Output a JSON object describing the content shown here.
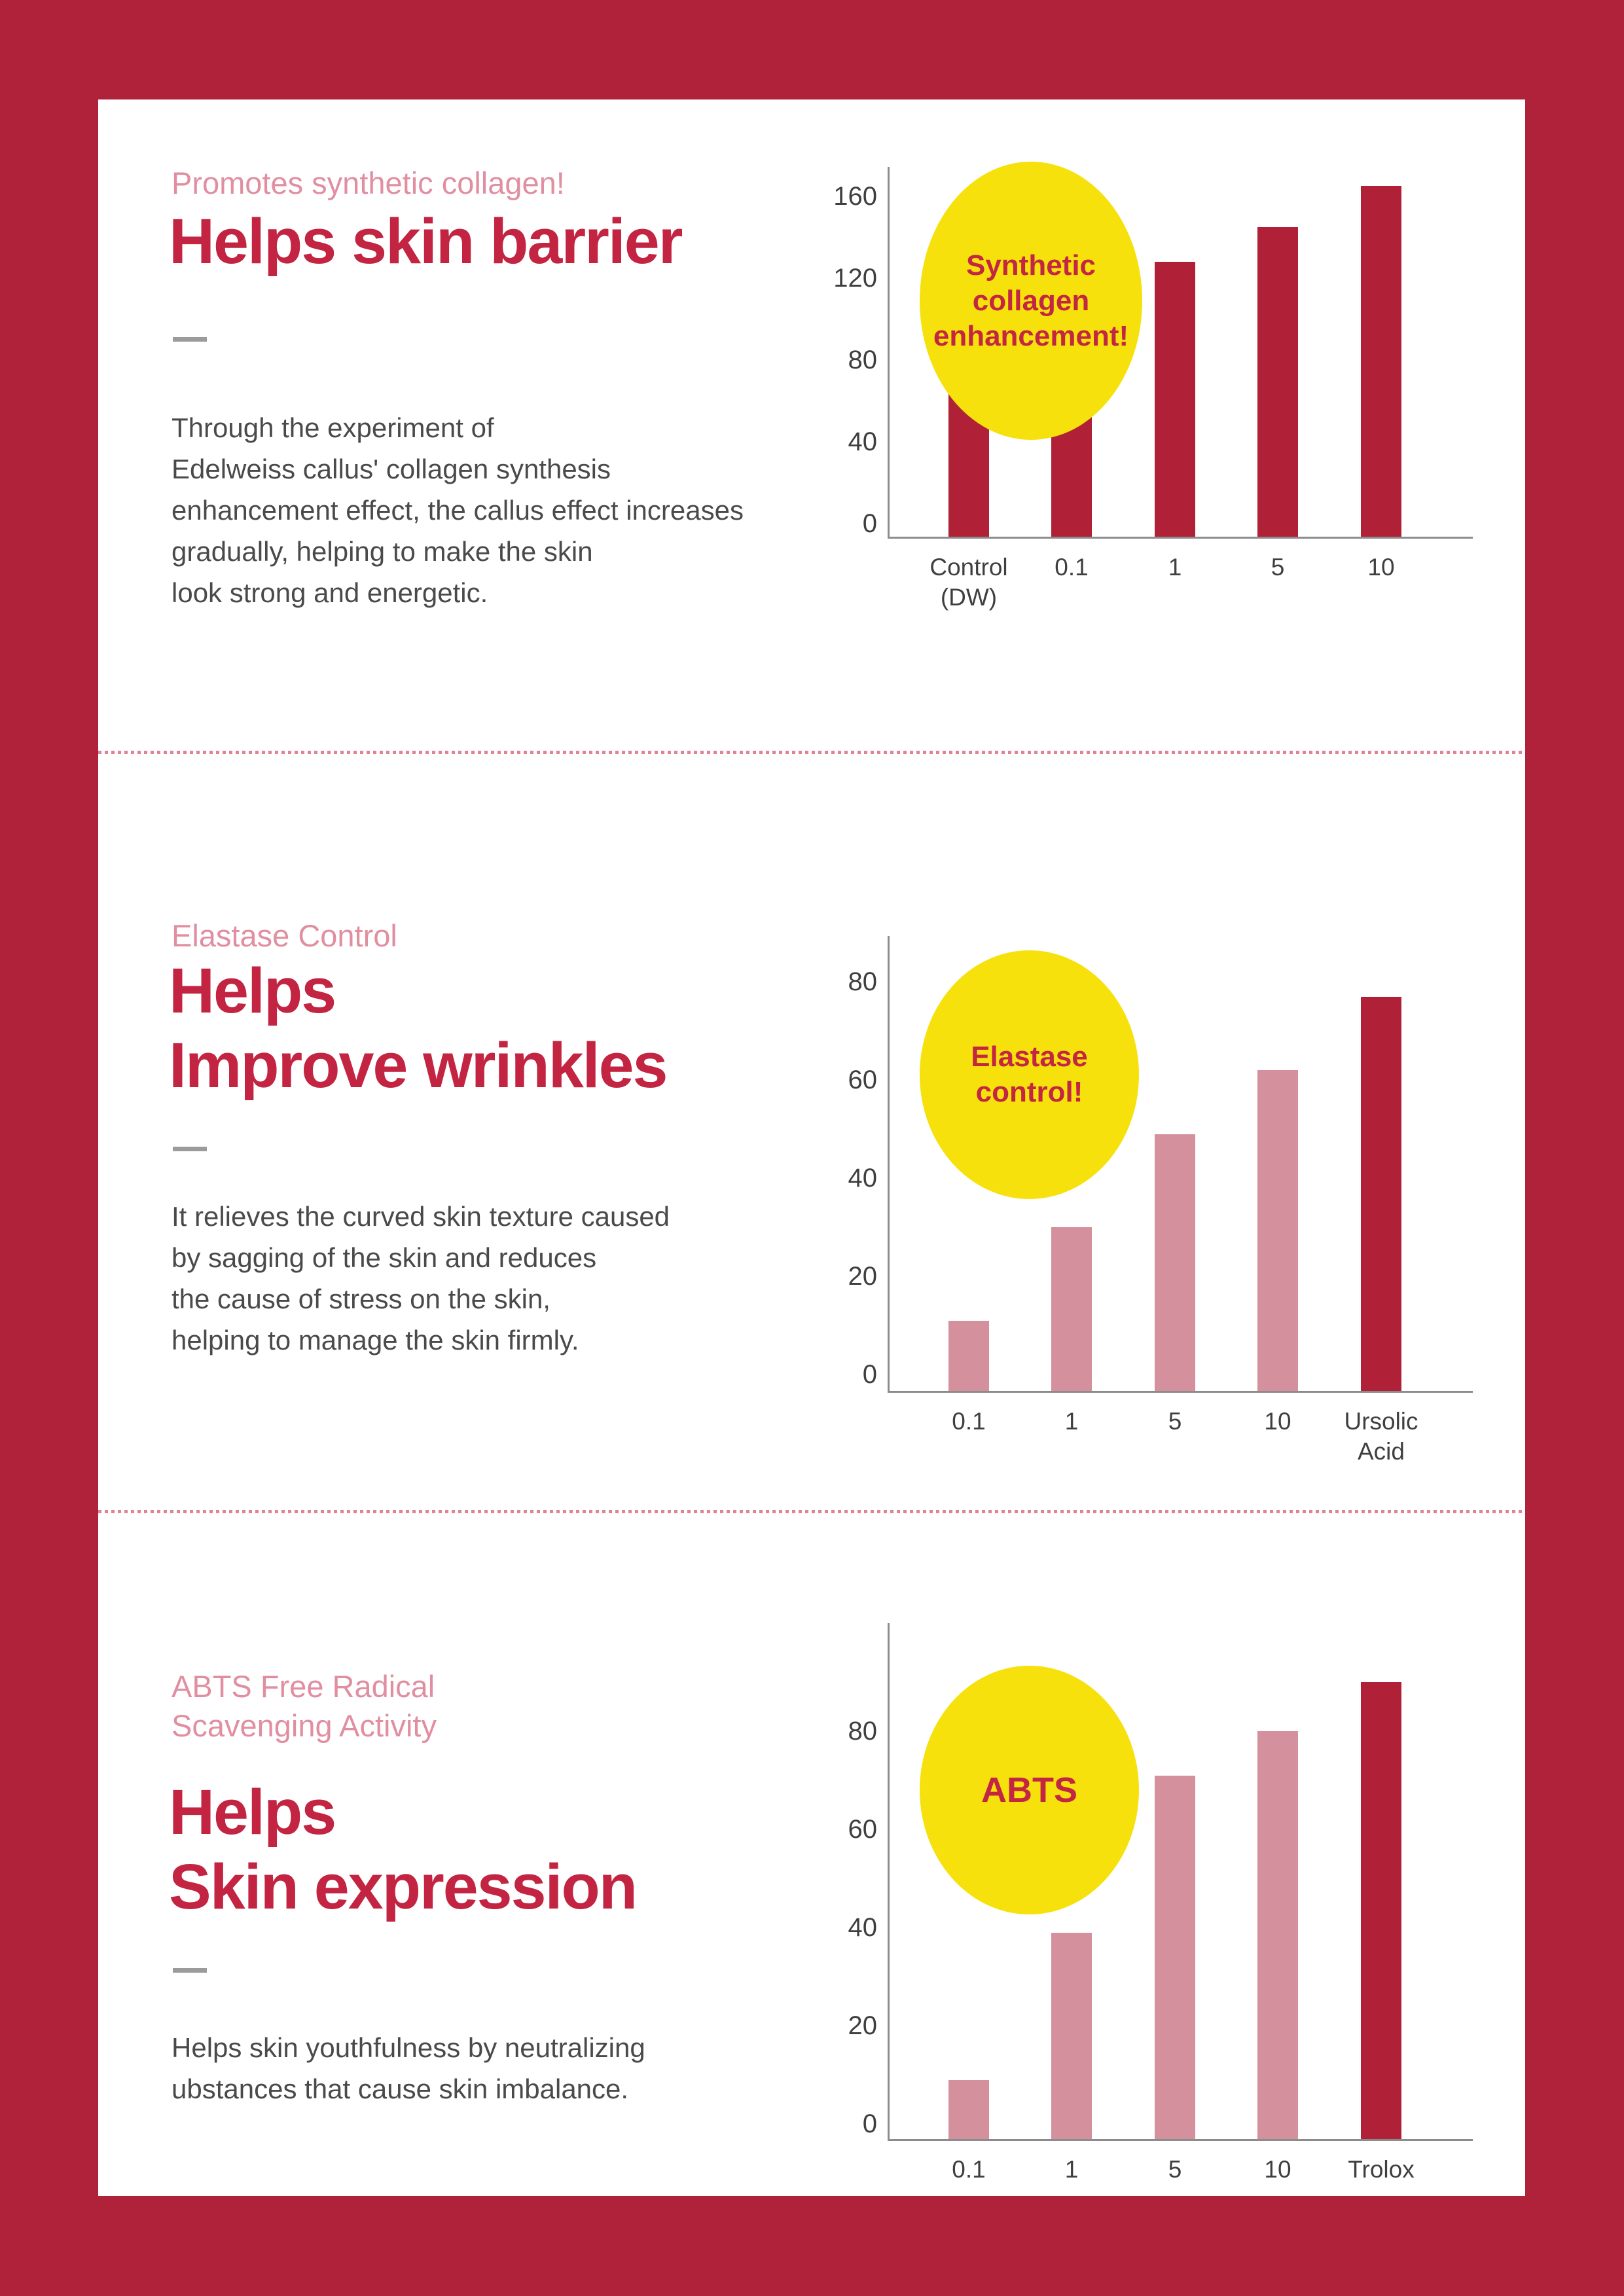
{
  "frame_color": "#B02239",
  "colors": {
    "title": "#C22442",
    "eyebrow": "#E18FA0",
    "body": "#4A4A4A",
    "bar_dark": "#B02138",
    "bar_pink": "#D5909D",
    "badge_bg": "#F6E10C",
    "badge_text": "#C32643",
    "axis": "#8C8C8C",
    "tick_text": "#3F3F3F",
    "dash": "#9B9B9B",
    "separator": "#DE8495"
  },
  "sections": [
    {
      "eyebrow": "Promotes synthetic collagen!",
      "title": "Helps skin barrier",
      "body": "Through the experiment of\nEdelweiss callus' collagen synthesis\nenhancement effect, the callus effect increases\ngradually, helping to make the skin\nlook strong and energetic."
    },
    {
      "eyebrow": "Elastase Control",
      "title": "Helps\nImprove wrinkles",
      "body": "It relieves the curved skin texture caused\nby sagging of the skin and reduces\nthe cause of stress on the skin,\nhelping to manage the skin firmly."
    },
    {
      "eyebrow": "ABTS Free Radical\nScavenging Activity",
      "title": "Helps\nSkin expression",
      "body": "Helps skin youthfulness by neutralizing\nubstances that cause skin imbalance."
    }
  ],
  "chart_data": [
    {
      "type": "bar",
      "badge": "Synthetic\ncollagen\nenhancement!",
      "categories": [
        "Control\n(DW)",
        "0.1",
        "1",
        "5",
        "10"
      ],
      "values": [
        100,
        90,
        128,
        145,
        165
      ],
      "bar_colors": [
        "#B02138",
        "#B02138",
        "#B02138",
        "#B02138",
        "#B02138"
      ],
      "yticks": [
        0,
        40,
        80,
        120,
        160
      ],
      "ylim": [
        0,
        180
      ],
      "xlabel": "",
      "ylabel": "",
      "grid": false,
      "legend": "none"
    },
    {
      "type": "bar",
      "badge": "Elastase\ncontrol!",
      "categories": [
        "0.1",
        "1",
        "5",
        "10",
        "Ursolic\nAcid"
      ],
      "values": [
        11,
        30,
        49,
        62,
        77
      ],
      "bar_colors": [
        "#D5909D",
        "#D5909D",
        "#D5909D",
        "#D5909D",
        "#B02138"
      ],
      "yticks": [
        0,
        20,
        40,
        60,
        80
      ],
      "ylim": [
        0,
        88
      ],
      "xlabel": "",
      "ylabel": "",
      "grid": false,
      "legend": "none"
    },
    {
      "type": "bar",
      "badge": "ABTS",
      "categories": [
        "0.1",
        "1",
        "5",
        "10",
        "Trolox"
      ],
      "values": [
        9,
        39,
        71,
        80,
        90
      ],
      "bar_colors": [
        "#D5909D",
        "#D5909D",
        "#D5909D",
        "#D5909D",
        "#B02138"
      ],
      "yticks": [
        0,
        20,
        40,
        60,
        80
      ],
      "ylim": [
        0,
        93
      ],
      "xlabel": "",
      "ylabel": "",
      "grid": false,
      "legend": "none"
    }
  ]
}
